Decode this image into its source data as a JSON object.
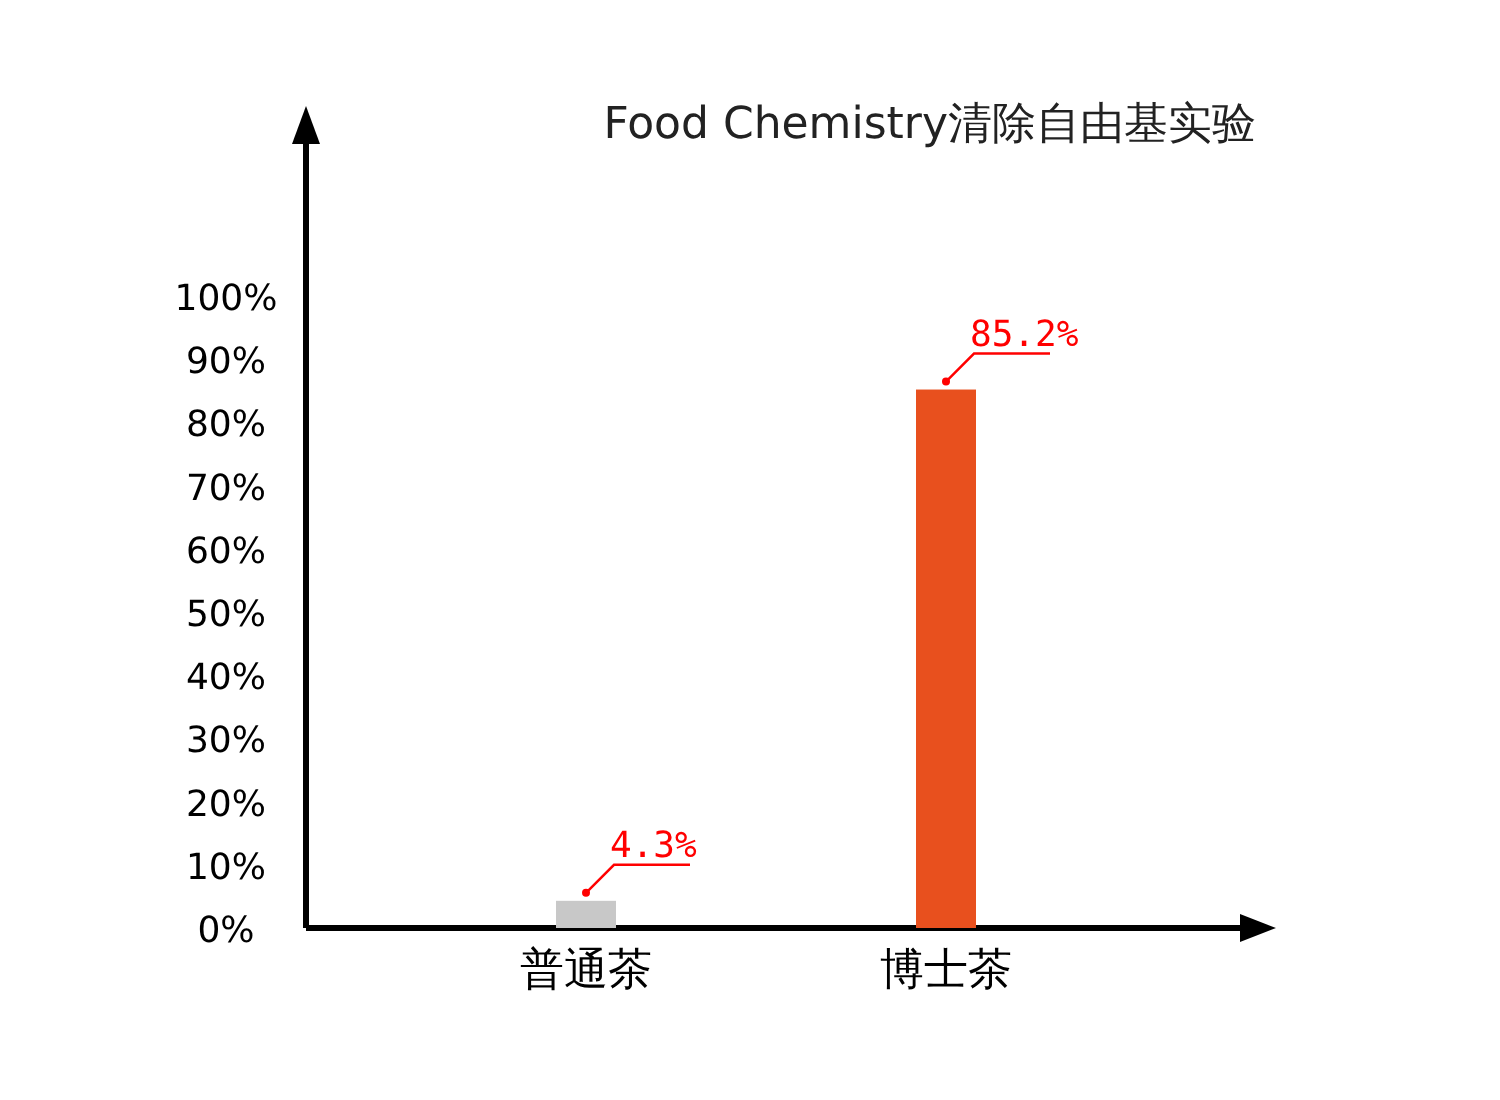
{
  "chart_data": {
    "type": "bar",
    "title": "Food Chemistry清除自由基实验",
    "categories": [
      "普通茶",
      "博士茶"
    ],
    "values": [
      4.3,
      85.2
    ],
    "colors": [
      "#c8c8c8",
      "#e8501e"
    ],
    "value_labels": [
      "4.3%",
      "85.2%"
    ],
    "ylim": [
      0,
      125
    ],
    "yticks": [
      {
        "value": 0,
        "label": "0%"
      },
      {
        "value": 10,
        "label": "10%"
      },
      {
        "value": 20,
        "label": "20%"
      },
      {
        "value": 30,
        "label": "30%"
      },
      {
        "value": 40,
        "label": "40%"
      },
      {
        "value": 50,
        "label": "50%"
      },
      {
        "value": 60,
        "label": "60%"
      },
      {
        "value": 70,
        "label": "70%"
      },
      {
        "value": 80,
        "label": "80%"
      },
      {
        "value": 90,
        "label": "90%"
      },
      {
        "value": 100,
        "label": "100%"
      }
    ],
    "grid": false,
    "legend": false
  }
}
